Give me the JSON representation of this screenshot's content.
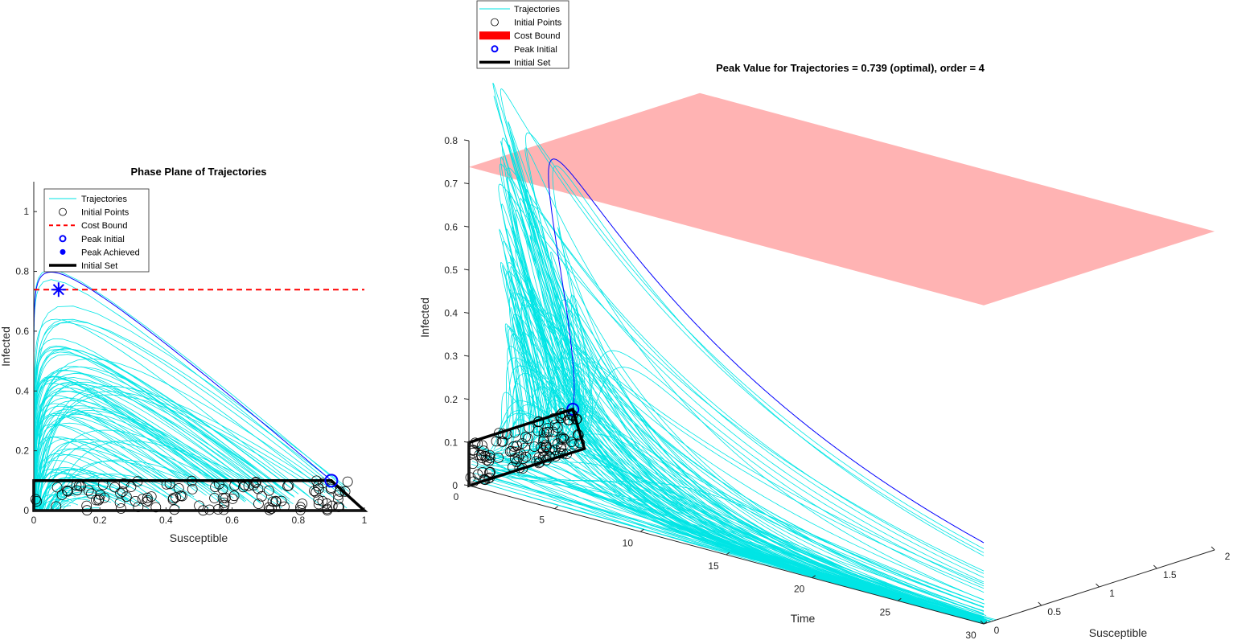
{
  "chart_data": [
    {
      "type": "line",
      "title": "Phase Plane of Trajectories",
      "xlabel": "Susceptible",
      "ylabel": "Infected",
      "xlim": [
        0,
        1
      ],
      "ylim": [
        0,
        1.1
      ],
      "xticks": [
        "0",
        "0.2",
        "0.4",
        "0.6",
        "0.8",
        "1"
      ],
      "yticks": [
        "0",
        "0.2",
        "0.4",
        "0.6",
        "0.8",
        "1"
      ],
      "grid": false,
      "legend_position": "top-left",
      "legend": [
        "Trajectories",
        "Initial Points",
        "Cost Bound",
        "Peak Initial",
        "Peak Achieved",
        "Initial Set"
      ],
      "cost_bound": 0.739,
      "peak_initial": [
        0.9,
        0.1
      ],
      "peak_achieved": [
        0.075,
        0.739
      ],
      "initial_set": [
        [
          0,
          0
        ],
        [
          1,
          0
        ],
        [
          0.9,
          0.1
        ],
        [
          0,
          0.1
        ]
      ],
      "colors": {
        "trajectories": "#00e5e5",
        "peak": "#0000ff",
        "bound": "#ff0000",
        "set": "#000000",
        "points": "#000000"
      }
    },
    {
      "type": "line",
      "title": "Peak Value for Trajectories = 0.739 (optimal),  order = 4",
      "xlabel": "Time",
      "ylabel": "Infected",
      "zlabel": "Susceptible",
      "time_range": [
        0,
        30
      ],
      "time_ticks": [
        "0",
        "5",
        "10",
        "15",
        "20",
        "25",
        "30"
      ],
      "infected_ticks": [
        "0",
        "0.1",
        "0.2",
        "0.3",
        "0.4",
        "0.5",
        "0.6",
        "0.7",
        "0.8"
      ],
      "susceptible_ticks": [
        "0",
        "0.5",
        "1",
        "1.5",
        "2"
      ],
      "grid": false,
      "legend_position": "top-left (outside)",
      "legend": [
        "Trajectories",
        "Initial Points",
        "Cost Bound",
        "Peak Initial",
        "Initial Set"
      ],
      "cost_bound": 0.739,
      "colors": {
        "trajectories": "#00e5e5",
        "peak": "#0000ff",
        "plane": "#ffb3b3",
        "set": "#000000"
      }
    }
  ]
}
